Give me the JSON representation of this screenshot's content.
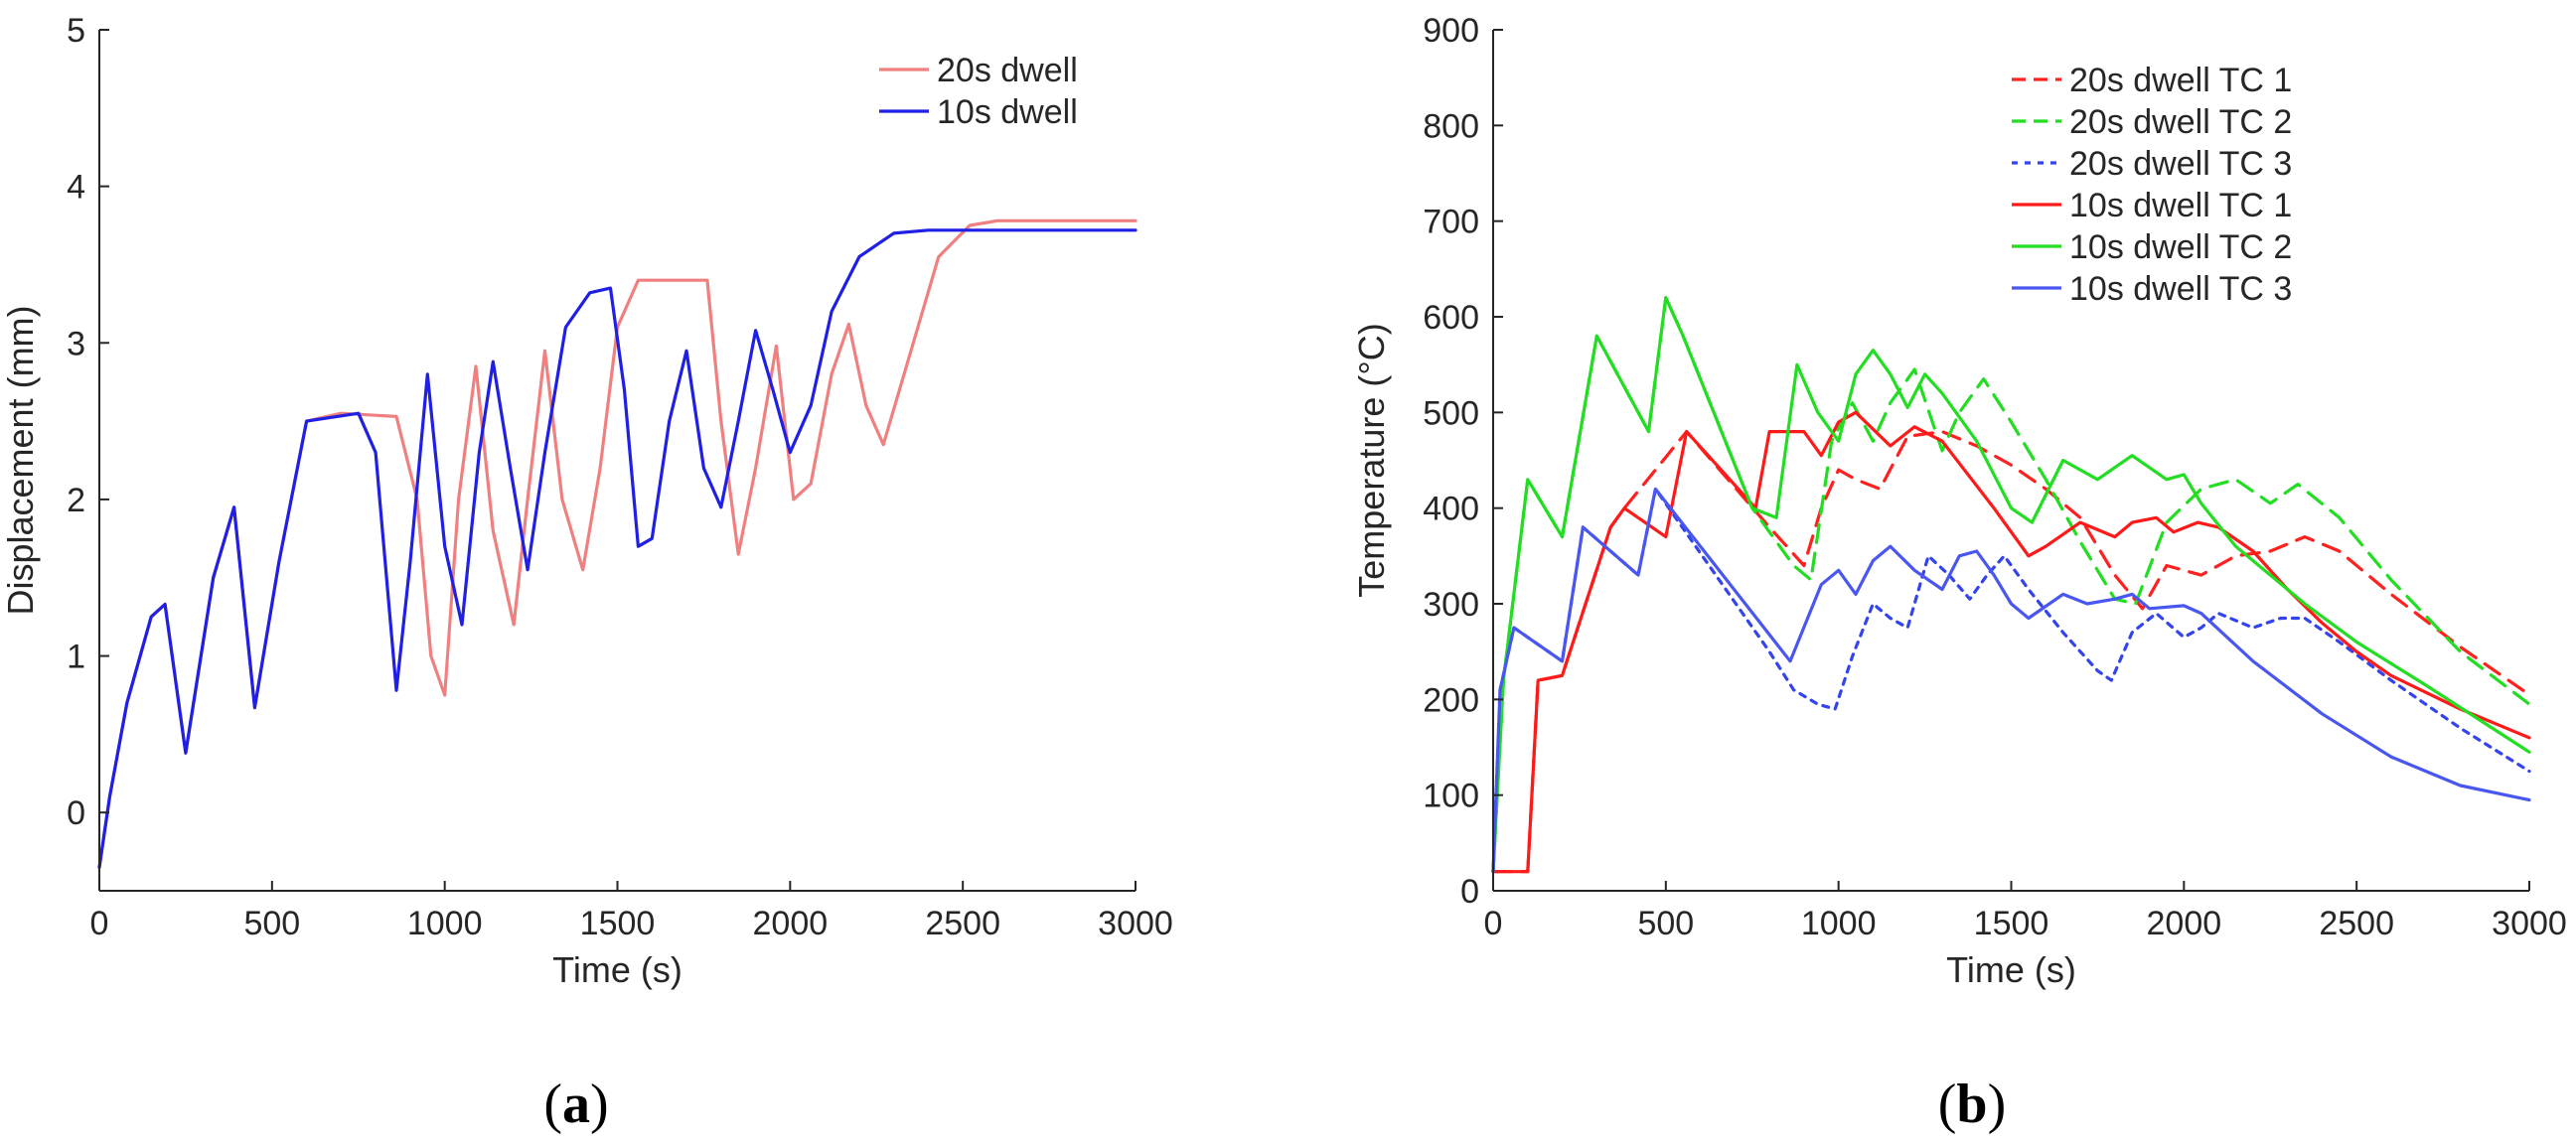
{
  "figure": {
    "panels": [
      {
        "caption_open": "(",
        "caption_letter": "a",
        "caption_close": ")"
      },
      {
        "caption_open": "(",
        "caption_letter": "b",
        "caption_close": ")"
      }
    ]
  },
  "chart_data": [
    {
      "type": "line",
      "xlabel": "Time (s)",
      "ylabel": "Displacement (mm)",
      "xlim": [
        0,
        3000
      ],
      "ylim": [
        -0.5,
        5
      ],
      "xticks": [
        0,
        500,
        1000,
        1500,
        2000,
        2500,
        3000
      ],
      "yticks": [
        0,
        1,
        2,
        3,
        4,
        5
      ],
      "legend_position": "top-right",
      "grid": false,
      "series": [
        {
          "name": "20s dwell",
          "color": "#f08080",
          "dash": "solid",
          "x": [
            0,
            30,
            80,
            150,
            190,
            250,
            330,
            390,
            450,
            520,
            600,
            700,
            860,
            920,
            960,
            1000,
            1040,
            1090,
            1140,
            1200,
            1240,
            1290,
            1340,
            1400,
            1450,
            1500,
            1560,
            1760,
            1800,
            1850,
            1900,
            1960,
            2010,
            2060,
            2120,
            2170,
            2220,
            2270,
            2350,
            2430,
            2520,
            2600,
            3000
          ],
          "y": [
            -0.35,
            0.1,
            0.7,
            1.25,
            1.33,
            0.38,
            1.5,
            1.95,
            0.67,
            1.6,
            2.5,
            2.55,
            2.53,
            2.0,
            1.0,
            0.75,
            2.0,
            2.85,
            1.8,
            1.2,
            2.0,
            2.95,
            2.0,
            1.55,
            2.2,
            3.1,
            3.4,
            3.4,
            2.5,
            1.65,
            2.2,
            2.98,
            2.0,
            2.1,
            2.8,
            3.12,
            2.6,
            2.35,
            2.95,
            3.55,
            3.75,
            3.78,
            3.78
          ]
        },
        {
          "name": "10s dwell",
          "color": "#1f1fe6",
          "dash": "solid",
          "x": [
            0,
            30,
            80,
            150,
            190,
            250,
            330,
            390,
            450,
            520,
            600,
            750,
            800,
            860,
            900,
            950,
            1000,
            1050,
            1100,
            1140,
            1190,
            1240,
            1290,
            1350,
            1420,
            1480,
            1520,
            1560,
            1600,
            1650,
            1700,
            1750,
            1800,
            1850,
            1900,
            1950,
            2000,
            2060,
            2120,
            2200,
            2300,
            2400,
            3000
          ],
          "y": [
            -0.35,
            0.1,
            0.7,
            1.25,
            1.33,
            0.38,
            1.5,
            1.95,
            0.67,
            1.6,
            2.5,
            2.55,
            2.3,
            0.78,
            1.6,
            2.8,
            1.7,
            1.2,
            2.3,
            2.88,
            2.2,
            1.55,
            2.3,
            3.1,
            3.32,
            3.35,
            2.7,
            1.7,
            1.75,
            2.5,
            2.95,
            2.2,
            1.95,
            2.5,
            3.08,
            2.7,
            2.3,
            2.6,
            3.2,
            3.55,
            3.7,
            3.72,
            3.72
          ]
        }
      ]
    },
    {
      "type": "line",
      "xlabel": "Time (s)",
      "ylabel": "Temperature (°C)",
      "xlim": [
        0,
        3000
      ],
      "ylim": [
        0,
        900
      ],
      "xticks": [
        0,
        500,
        1000,
        1500,
        2000,
        2500,
        3000
      ],
      "yticks": [
        0,
        100,
        200,
        300,
        400,
        500,
        600,
        700,
        800,
        900
      ],
      "legend_position": "top-right",
      "grid": false,
      "series": [
        {
          "name": "20s dwell TC 1",
          "color": "#ff2020",
          "dash": "dashed",
          "x": [
            0,
            100,
            130,
            200,
            340,
            380,
            560,
            800,
            900,
            950,
            1000,
            1050,
            1120,
            1200,
            1300,
            1400,
            1500,
            1600,
            1700,
            1800,
            1880,
            1950,
            2050,
            2150,
            2250,
            2350,
            2450,
            2600,
            2800,
            3000
          ],
          "y": [
            20,
            20,
            220,
            225,
            380,
            400,
            480,
            380,
            340,
            400,
            440,
            430,
            420,
            475,
            480,
            465,
            445,
            420,
            390,
            330,
            295,
            340,
            330,
            350,
            355,
            370,
            355,
            310,
            255,
            205
          ]
        },
        {
          "name": "20s dwell TC 2",
          "color": "#22dd22",
          "dash": "dashed",
          "x": [
            0,
            30,
            100,
            200,
            300,
            450,
            500,
            550,
            750,
            820,
            870,
            920,
            980,
            1040,
            1100,
            1150,
            1220,
            1300,
            1350,
            1420,
            1500,
            1600,
            1700,
            1800,
            1860,
            1950,
            2050,
            2150,
            2250,
            2330,
            2450,
            2600,
            2800,
            3000
          ],
          "y": [
            20,
            220,
            430,
            370,
            580,
            480,
            620,
            580,
            400,
            365,
            340,
            325,
            470,
            510,
            470,
            510,
            545,
            460,
            500,
            535,
            490,
            430,
            365,
            305,
            300,
            385,
            420,
            430,
            405,
            425,
            390,
            325,
            250,
            195
          ]
        },
        {
          "name": "20s dwell TC 3",
          "color": "#3344ee",
          "dash": "dotted",
          "x": [
            0,
            20,
            60,
            200,
            260,
            420,
            470,
            800,
            870,
            940,
            990,
            1040,
            1100,
            1150,
            1200,
            1260,
            1320,
            1380,
            1430,
            1480,
            1550,
            1650,
            1750,
            1790,
            1850,
            1920,
            2000,
            2050,
            2100,
            2200,
            2280,
            2350,
            2450,
            2600,
            2800,
            3000
          ],
          "y": [
            20,
            210,
            275,
            240,
            380,
            330,
            420,
            250,
            210,
            195,
            190,
            245,
            300,
            285,
            275,
            350,
            330,
            305,
            330,
            350,
            315,
            270,
            230,
            220,
            270,
            290,
            265,
            275,
            290,
            275,
            285,
            285,
            260,
            220,
            170,
            125
          ]
        },
        {
          "name": "10s dwell TC 1",
          "color": "#ff1a1a",
          "dash": "solid",
          "x": [
            0,
            100,
            130,
            200,
            340,
            380,
            500,
            560,
            760,
            800,
            900,
            950,
            1000,
            1050,
            1150,
            1220,
            1300,
            1450,
            1550,
            1600,
            1700,
            1800,
            1850,
            1920,
            1970,
            2040,
            2100,
            2200,
            2300,
            2400,
            2500,
            2600,
            2800,
            3000
          ],
          "y": [
            20,
            20,
            220,
            225,
            380,
            400,
            370,
            480,
            400,
            480,
            480,
            455,
            490,
            500,
            465,
            485,
            470,
            400,
            350,
            360,
            385,
            370,
            385,
            390,
            375,
            385,
            380,
            355,
            315,
            280,
            250,
            225,
            190,
            160
          ]
        },
        {
          "name": "10s dwell TC 2",
          "color": "#22dd22",
          "dash": "solid",
          "x": [
            0,
            30,
            100,
            200,
            300,
            450,
            500,
            550,
            750,
            820,
            880,
            940,
            1000,
            1050,
            1100,
            1150,
            1200,
            1250,
            1300,
            1400,
            1500,
            1560,
            1650,
            1750,
            1850,
            1950,
            2000,
            2050,
            2150,
            2250,
            2350,
            2500,
            2700,
            3000
          ],
          "y": [
            20,
            220,
            430,
            370,
            580,
            480,
            620,
            580,
            400,
            390,
            550,
            500,
            470,
            540,
            565,
            540,
            505,
            540,
            520,
            470,
            400,
            385,
            450,
            430,
            455,
            430,
            435,
            405,
            360,
            330,
            300,
            260,
            215,
            145
          ]
        },
        {
          "name": "10s dwell TC 3",
          "color": "#4a56f0",
          "dash": "solid",
          "x": [
            0,
            20,
            60,
            200,
            260,
            420,
            470,
            860,
            950,
            1000,
            1050,
            1100,
            1150,
            1220,
            1300,
            1350,
            1400,
            1450,
            1500,
            1550,
            1650,
            1720,
            1800,
            1850,
            1900,
            2000,
            2050,
            2200,
            2400,
            2600,
            2800,
            3000
          ],
          "y": [
            20,
            210,
            275,
            240,
            380,
            330,
            420,
            240,
            320,
            335,
            310,
            345,
            360,
            335,
            315,
            350,
            355,
            330,
            300,
            285,
            310,
            300,
            305,
            310,
            295,
            298,
            290,
            240,
            185,
            140,
            110,
            95
          ]
        }
      ]
    }
  ]
}
